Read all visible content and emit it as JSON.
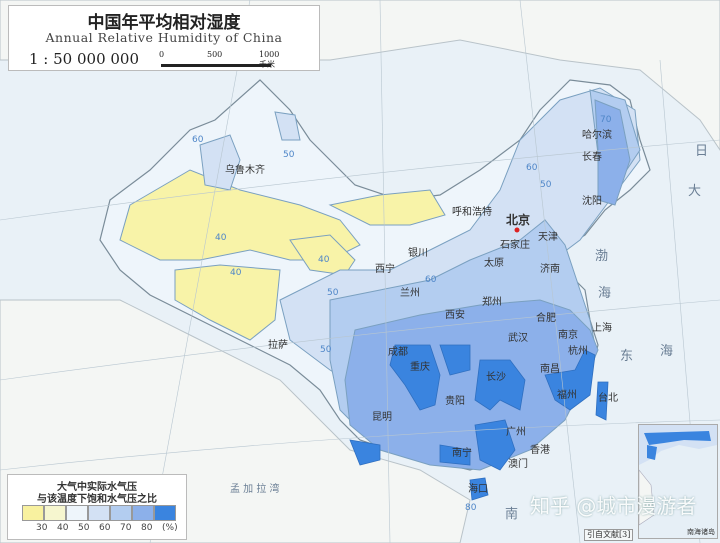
{
  "title": {
    "chinese": "中国年平均相对湿度",
    "english": "Annual Relative Humidity of China",
    "scale": "1 : 50 000 000",
    "scalebar_ticks": [
      "0",
      "500",
      "1000 千米"
    ]
  },
  "legend": {
    "caption_line1": "大气中实际水气压",
    "caption_line2": "与该温度下饱和水气压之比",
    "ticks": [
      "30",
      "40",
      "50",
      "60",
      "70",
      "80",
      "(%)"
    ],
    "classes": [
      {
        "range": "<40",
        "color": "#f8f19f"
      },
      {
        "range": "40-50 (yellow)",
        "color": "#f6f6cf"
      },
      {
        "range": "40-50",
        "color": "#eef5fb"
      },
      {
        "range": "50-60",
        "color": "#d3e1f4"
      },
      {
        "range": "60-70",
        "color": "#b3cdf0"
      },
      {
        "range": "70-80",
        "color": "#8cb0ea"
      },
      {
        "range": ">80",
        "color": "#3a84df"
      }
    ]
  },
  "cities": [
    "乌鲁木齐",
    "呼和浩特",
    "北京",
    "哈尔滨",
    "长春",
    "沈阳",
    "天津",
    "石家庄",
    "太原",
    "济南",
    "银川",
    "西宁",
    "兰州",
    "西安",
    "郑州",
    "合肥",
    "南京",
    "上海",
    "杭州",
    "武汉",
    "南昌",
    "长沙",
    "成都",
    "重庆",
    "贵阳",
    "福州",
    "台北",
    "昆明",
    "广州",
    "南宁",
    "香港",
    "澳门",
    "海口",
    "拉萨"
  ],
  "seas": [
    "渤",
    "海",
    "东",
    "海",
    "南",
    "日",
    "大",
    "孟 加 拉 湾"
  ],
  "contour_labels": [
    "50",
    "60",
    "40",
    "40",
    "40",
    "50",
    "50",
    "60",
    "70",
    "50",
    "60",
    "80"
  ],
  "inset_label": "南海诸岛",
  "source": "引自文献[3]",
  "watermark": "知乎 @城市漫游者"
}
